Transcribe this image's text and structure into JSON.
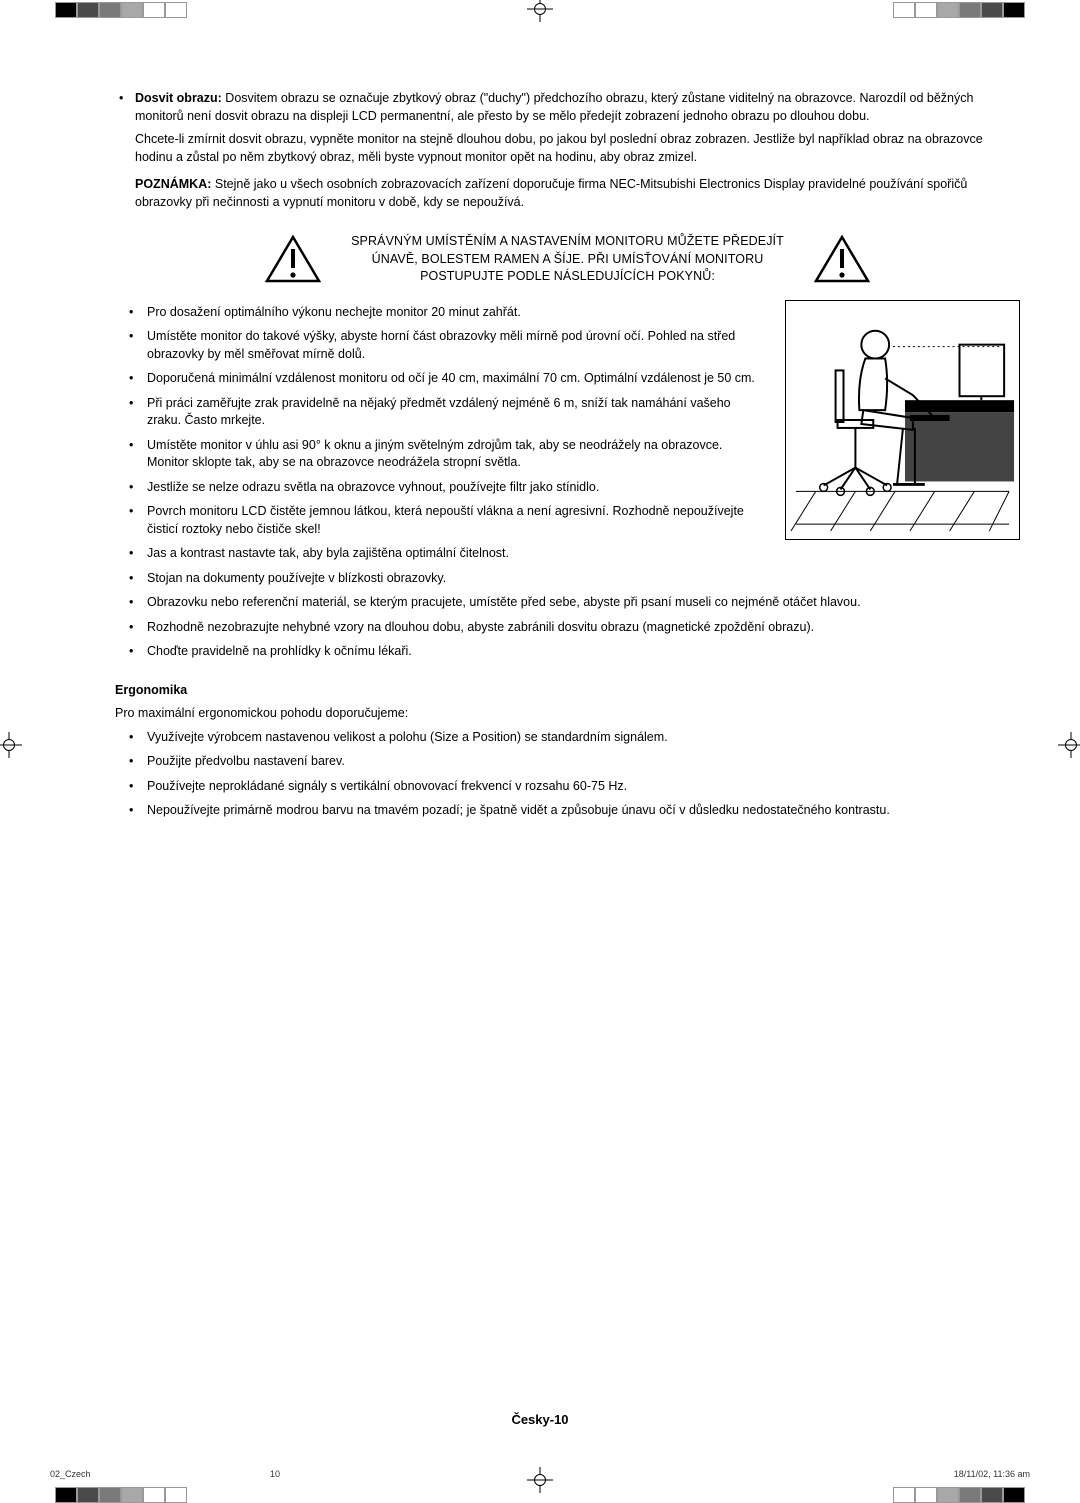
{
  "topStrip": {
    "leftColors": [
      "#000000",
      "#4a4a4a",
      "#7a7a7a",
      "#a8a8a8",
      "#ffffff",
      "#ffffff"
    ],
    "rightColors": [
      "#000000",
      "#4a4a4a",
      "#7a7a7a",
      "#a8a8a8",
      "#ffffff",
      "#ffffff"
    ]
  },
  "intro": {
    "bulletLead": "Dosvit obrazu:",
    "bulletBody": " Dosvitem obrazu se označuje zbytkový obraz (\"duchy\") předchozího obrazu, který zůstane viditelný na obrazovce. Narozdíl od běžných monitorů není dosvit obrazu na displeji LCD permanentní, ale přesto by se mělo předejít zobrazení jednoho obrazu po dlouhou dobu.",
    "para2": "Chcete-li zmírnit dosvit obrazu, vypněte monitor na stejně dlouhou dobu, po jakou byl poslední obraz zobrazen. Jestliže byl například obraz na obrazovce hodinu a zůstal po něm zbytkový obraz, měli byste vypnout monitor opět na hodinu, aby obraz zmizel.",
    "noteLead": "POZNÁMKA:",
    "noteBody": " Stejně jako u všech osobních zobrazovacích zařízení doporučuje firma NEC-Mitsubishi Electronics Display pravidelné používání spořičů obrazovky při nečinnosti a vypnutí monitoru v době, kdy se nepoužívá."
  },
  "warning": {
    "line1": "SPRÁVNÝM UMÍSTĚNÍM A NASTAVENÍM MONITORU MŮŽETE PŘEDEJÍT",
    "line2": "ÚNAVĚ, BOLESTEM RAMEN A ŠÍJE. PŘI UMÍSŤOVÁNÍ MONITORU",
    "line3": "POSTUPUJTE PODLE NÁSLEDUJÍCÍCH POKYNŮ:"
  },
  "bullets": [
    "Pro dosažení optimálního výkonu nechejte monitor 20 minut zahřát.",
    "Umístěte monitor do takové výšky, abyste horní část obrazovky měli mírně pod úrovní očí. Pohled na střed obrazovky by měl směřovat mírně dolů.",
    "Doporučená minimální vzdálenost monitoru od očí je 40 cm, maximální 70 cm. Optimální vzdálenost je 50 cm.",
    "Při práci zaměřujte zrak pravidelně na nějaký předmět vzdálený nejméně 6 m, sníží tak namáhání vašeho zraku. Často mrkejte.",
    "Umístěte monitor v úhlu asi 90° k oknu a jiným světelným zdrojům tak, aby se neodrážely na obrazovce. Monitor sklopte tak, aby se na obrazovce neodrážela stropní světla.",
    "Jestliže se nelze odrazu světla na obrazovce vyhnout, používejte filtr jako stínidlo.",
    "Povrch monitoru LCD čistěte jemnou látkou, která nepouští vlákna a není agresivní. Rozhodně nepoužívejte čisticí roztoky nebo čističe skel!",
    "Jas a kontrast nastavte tak, aby byla zajištěna optimální čitelnost.",
    "Stojan na dokumenty používejte v blízkosti obrazovky.",
    "Obrazovku nebo referenční materiál, se kterým pracujete, umístěte před sebe, abyste při psaní museli co nejméně otáčet hlavou.",
    "Rozhodně nezobrazujte nehybné vzory na dlouhou dobu, abyste zabránili dosvitu obrazu (magnetické zpoždění obrazu).",
    "Choďte pravidelně na prohlídky k očnímu lékaři."
  ],
  "ergo": {
    "heading": "Ergonomika",
    "intro": "Pro maximální ergonomickou pohodu doporučujeme:",
    "items": [
      "Využívejte výrobcem nastavenou velikost a polohu (Size a Position) se standardním signálem.",
      "Použijte předvolbu nastavení barev.",
      "Používejte neprokládané signály s vertikální obnovovací frekvencí v rozsahu 60-75 Hz.",
      "Nepoužívejte primárně modrou barvu na tmavém pozadí; je špatně vidět a způsobuje únavu očí v důsledku nedostatečného kontrastu."
    ]
  },
  "footer": {
    "pageLabel": "Česky-10",
    "meta1": "02_Czech",
    "meta2": "10",
    "meta3": "18/11/02, 11:36 am"
  }
}
